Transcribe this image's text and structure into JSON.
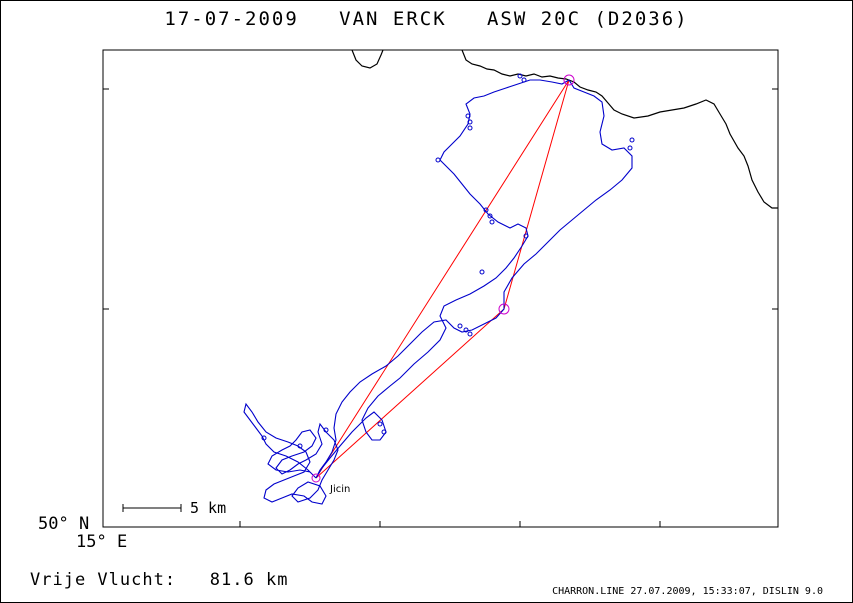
{
  "header": {
    "date": "17-07-2009",
    "pilot": "VAN ERCK",
    "glider": "ASW 20C (D2036)"
  },
  "axes": {
    "lat_label": "50° N",
    "lon_label": "15° E"
  },
  "scale_bar": {
    "label": "5 km"
  },
  "place": {
    "name": "Jicin"
  },
  "result": {
    "label": "Vrije Vlucht:",
    "value": "81.6 km"
  },
  "footer": {
    "text": "CHARRON.LINE 27.07.2009, 15:33:07, DISLIN 9.0"
  },
  "colors": {
    "track": "#0000cc",
    "task": "#ff0000",
    "turnpoint": "#cc00cc",
    "coast": "#000000"
  }
}
